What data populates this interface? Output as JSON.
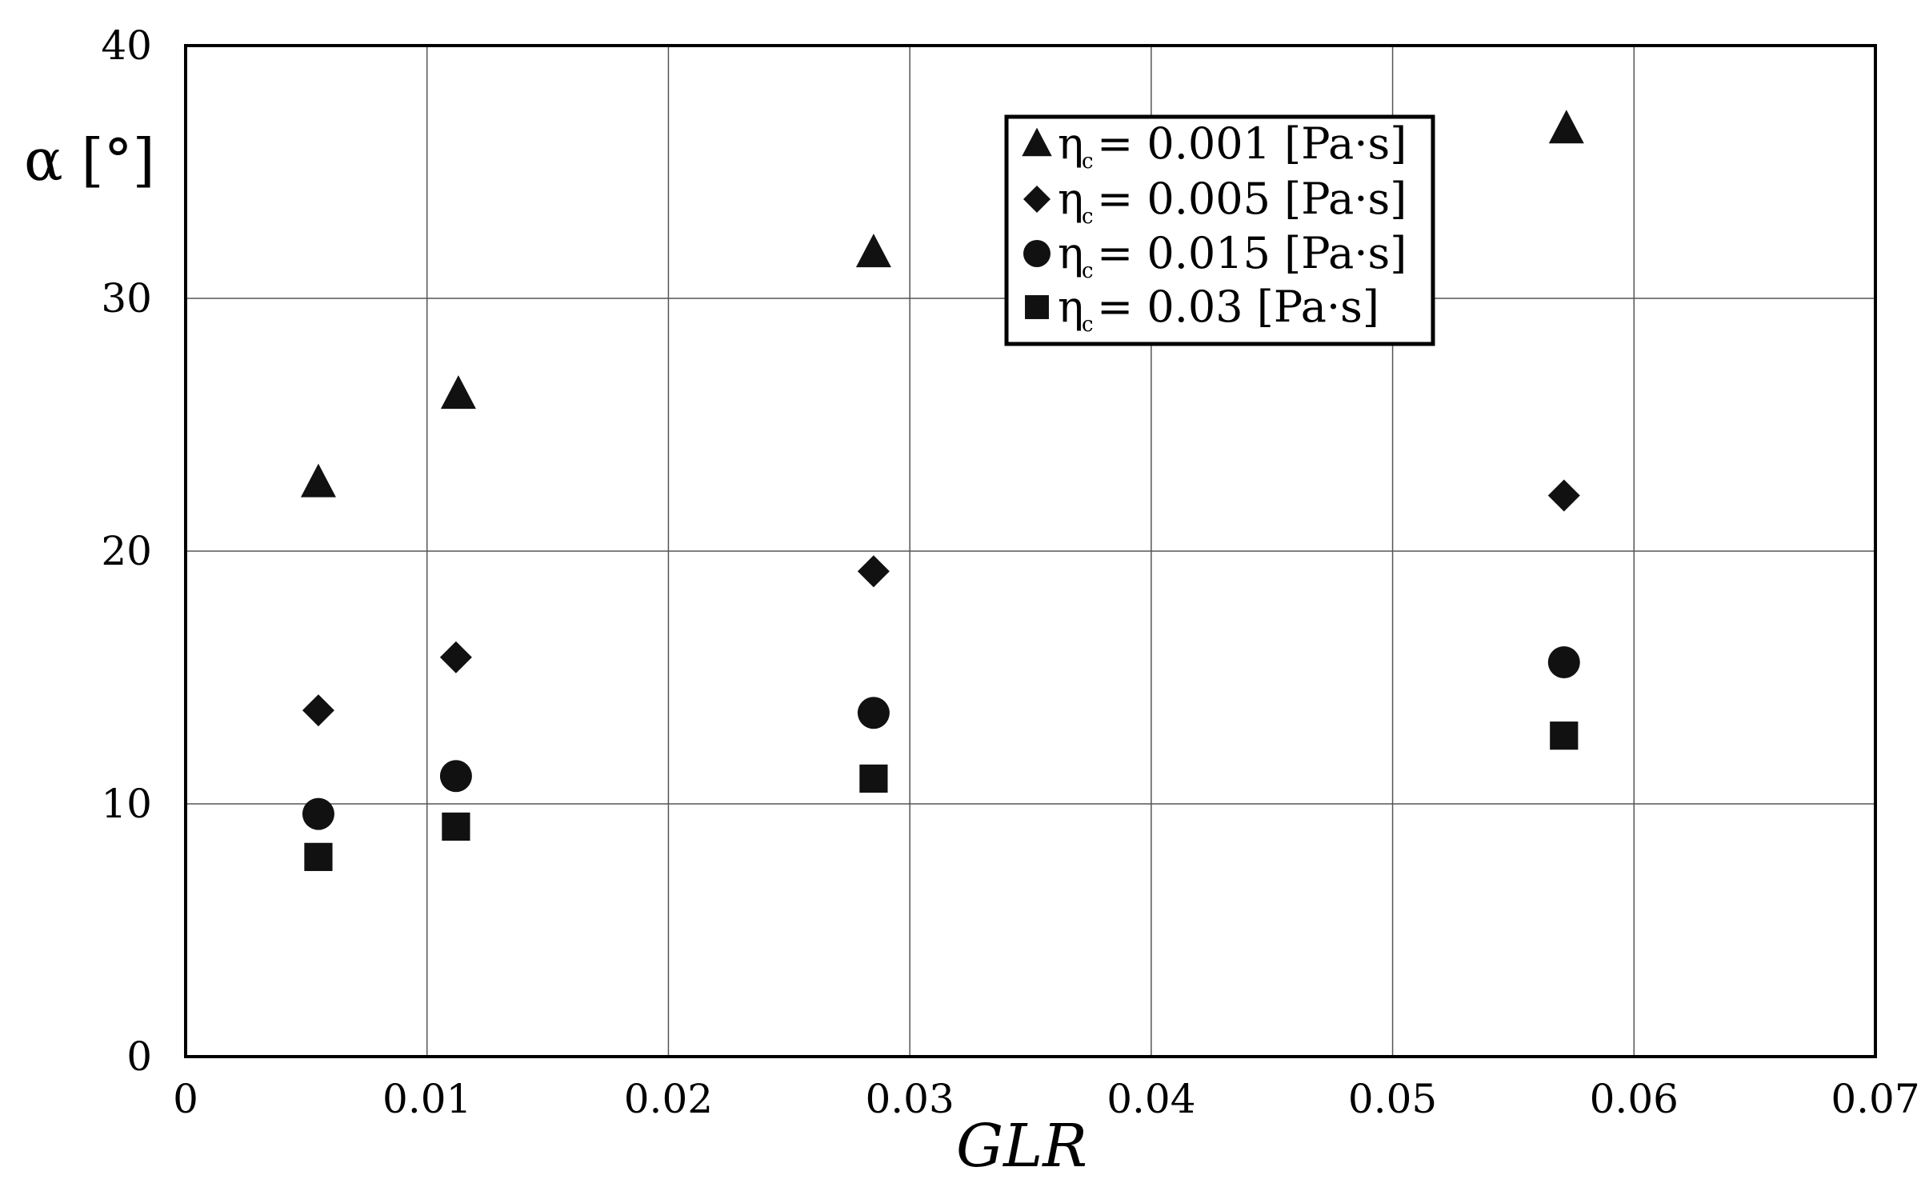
{
  "chart_data": {
    "type": "scatter",
    "xlabel": "GLR",
    "ylabel": "α [°]",
    "xlim": [
      0,
      0.07
    ],
    "ylim": [
      0,
      40
    ],
    "x_ticks": [
      0,
      0.01,
      0.02,
      0.03,
      0.04,
      0.05,
      0.06,
      0.07
    ],
    "y_ticks": [
      0,
      10,
      20,
      30,
      40
    ],
    "x_tick_labels": [
      "0",
      "0.01",
      "0.02",
      "0.03",
      "0.04",
      "0.05",
      "0.06",
      "0.07"
    ],
    "y_tick_labels": [
      "0",
      "10",
      "20",
      "30",
      "40"
    ],
    "grid": true,
    "legend_position": "top-right",
    "series": [
      {
        "name": "ηc= 0.001 [Pa·s]",
        "legend_symbol": "η",
        "legend_subscript": "c",
        "legend_rest": "= 0.001 [Pa·s]",
        "marker": "triangle",
        "color": "#111111",
        "x": [
          0.0055,
          0.0113,
          0.0285,
          0.0572
        ],
        "y": [
          22.7,
          26.2,
          31.8,
          36.7
        ]
      },
      {
        "name": "ηc= 0.005 [Pa·s]",
        "legend_symbol": "η",
        "legend_subscript": "c",
        "legend_rest": "= 0.005 [Pa·s]",
        "marker": "diamond",
        "color": "#111111",
        "x": [
          0.0055,
          0.0112,
          0.0285,
          0.0571
        ],
        "y": [
          13.7,
          15.8,
          19.2,
          22.2
        ]
      },
      {
        "name": "ηc= 0.015 [Pa·s]",
        "legend_symbol": "η",
        "legend_subscript": "c",
        "legend_rest": "= 0.015 [Pa·s]",
        "marker": "circle",
        "color": "#111111",
        "x": [
          0.0055,
          0.0112,
          0.0285,
          0.0571
        ],
        "y": [
          9.6,
          11.1,
          13.6,
          15.6
        ]
      },
      {
        "name": "ηc= 0.03 [Pa·s]",
        "legend_symbol": "η",
        "legend_subscript": "c",
        "legend_rest": "= 0.03 [Pa·s]",
        "marker": "square",
        "color": "#111111",
        "x": [
          0.0055,
          0.0112,
          0.0285,
          0.0571
        ],
        "y": [
          7.9,
          9.1,
          11.0,
          12.7
        ]
      }
    ]
  }
}
